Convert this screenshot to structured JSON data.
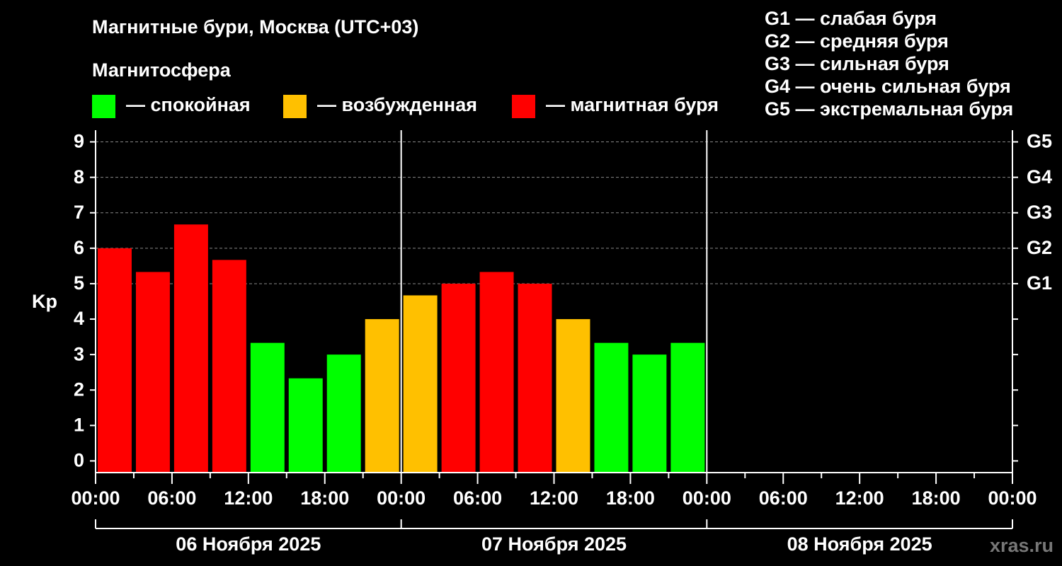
{
  "chart_data": {
    "type": "bar",
    "title": "Магнитные бури, Москва (UTC+03)",
    "subtitle": "Магнитосфера",
    "legend": [
      {
        "color": "#00ff00",
        "label": "— спокойная"
      },
      {
        "color": "#ffc000",
        "label": "— возбужденная"
      },
      {
        "color": "#ff0000",
        "label": "— магнитная буря"
      }
    ],
    "scale_legend": [
      "G1 — слабая буря",
      "G2 — средняя буря",
      "G3 — сильная буря",
      "G4 — очень сильная буря",
      "G5 — экстремальная буря"
    ],
    "x": [
      0,
      3,
      6,
      9,
      12,
      15,
      18,
      21,
      24,
      27,
      30,
      33,
      36,
      39,
      42,
      45
    ],
    "values": [
      6,
      5.33,
      6.67,
      5.67,
      3.33,
      2.33,
      3,
      4,
      4.67,
      5,
      5.33,
      5,
      4,
      3.33,
      3,
      3.33
    ],
    "colors": [
      "#ff0000",
      "#ff0000",
      "#ff0000",
      "#ff0000",
      "#00ff00",
      "#00ff00",
      "#00ff00",
      "#ffc000",
      "#ffc000",
      "#ff0000",
      "#ff0000",
      "#ff0000",
      "#ffc000",
      "#00ff00",
      "#00ff00",
      "#00ff00"
    ],
    "xlim": [
      0,
      72
    ],
    "xticks": [
      {
        "value": 0,
        "label": "00:00"
      },
      {
        "value": 6,
        "label": "06:00"
      },
      {
        "value": 12,
        "label": "12:00"
      },
      {
        "value": 18,
        "label": "18:00"
      },
      {
        "value": 24,
        "label": "00:00"
      },
      {
        "value": 30,
        "label": "06:00"
      },
      {
        "value": 36,
        "label": "12:00"
      },
      {
        "value": 42,
        "label": "18:00"
      },
      {
        "value": 48,
        "label": "00:00"
      },
      {
        "value": 54,
        "label": "06:00"
      },
      {
        "value": 60,
        "label": "12:00"
      },
      {
        "value": 66,
        "label": "18:00"
      },
      {
        "value": 72,
        "label": "00:00"
      }
    ],
    "days": [
      "06 Ноября 2025",
      "07 Ноября 2025",
      "08 Ноября 2025"
    ],
    "ylabel": "Kp",
    "ylim": [
      -0.33,
      9.33
    ],
    "yticks": [
      0,
      1,
      2,
      3,
      4,
      5,
      6,
      7,
      8,
      9
    ],
    "y2lim": [
      -0.33,
      9.33
    ],
    "y2ticks": [
      {
        "value": 5,
        "label": "G1"
      },
      {
        "value": 6,
        "label": "G2"
      },
      {
        "value": 7,
        "label": "G3"
      },
      {
        "value": 8,
        "label": "G4"
      },
      {
        "value": 9,
        "label": "G5"
      }
    ],
    "grid": true,
    "source": "xras.ru"
  }
}
